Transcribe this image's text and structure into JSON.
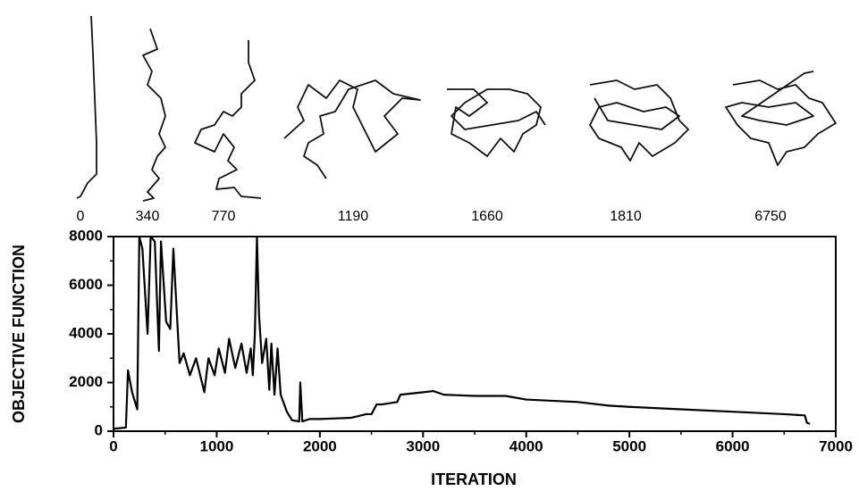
{
  "chart_data": {
    "type": "line",
    "xlabel": "ITERATION",
    "ylabel": "OBJECTIVE FUNCTION",
    "snapshot_labels": [
      "0",
      "340",
      "770",
      "1190",
      "1660",
      "1810",
      "6750"
    ],
    "xlim": [
      0,
      7000
    ],
    "xticks": [
      0,
      1000,
      2000,
      3000,
      4000,
      5000,
      6000,
      7000
    ],
    "xminorticks": [
      500,
      1500,
      2500,
      3500,
      4500,
      5500,
      6500
    ],
    "ylim": [
      0,
      8000
    ],
    "yticks": [
      0,
      2000,
      4000,
      6000,
      8000
    ],
    "yminorticks": [
      1000,
      3000,
      5000,
      7000
    ],
    "color": "#000000",
    "x": [
      0,
      120,
      140,
      180,
      230,
      250,
      280,
      330,
      360,
      400,
      440,
      460,
      510,
      550,
      580,
      640,
      680,
      740,
      800,
      880,
      920,
      980,
      1020,
      1080,
      1120,
      1180,
      1240,
      1290,
      1330,
      1350,
      1370,
      1390,
      1410,
      1440,
      1480,
      1510,
      1530,
      1560,
      1590,
      1620,
      1680,
      1730,
      1800,
      1810,
      1830,
      1900,
      2000,
      2300,
      2450,
      2500,
      2550,
      2600,
      2750,
      2780,
      3000,
      3100,
      3200,
      3500,
      3800,
      4000,
      4500,
      4800,
      5000,
      5500,
      6000,
      6500,
      6700,
      6720,
      6750
    ],
    "values": [
      100,
      150,
      2500,
      1600,
      900,
      8000,
      7500,
      4000,
      8000,
      7800,
      3300,
      7800,
      4500,
      4200,
      7500,
      2800,
      3200,
      2300,
      3000,
      1600,
      3000,
      2300,
      3400,
      2400,
      3800,
      2600,
      3600,
      2400,
      3400,
      2300,
      4000,
      8000,
      4800,
      2800,
      3800,
      1700,
      3600,
      1500,
      3400,
      1500,
      800,
      450,
      400,
      2000,
      400,
      500,
      500,
      550,
      700,
      700,
      1100,
      1100,
      1200,
      1500,
      1600,
      1650,
      1500,
      1450,
      1450,
      1300,
      1200,
      1050,
      1000,
      900,
      800,
      700,
      650,
      350,
      300
    ]
  }
}
